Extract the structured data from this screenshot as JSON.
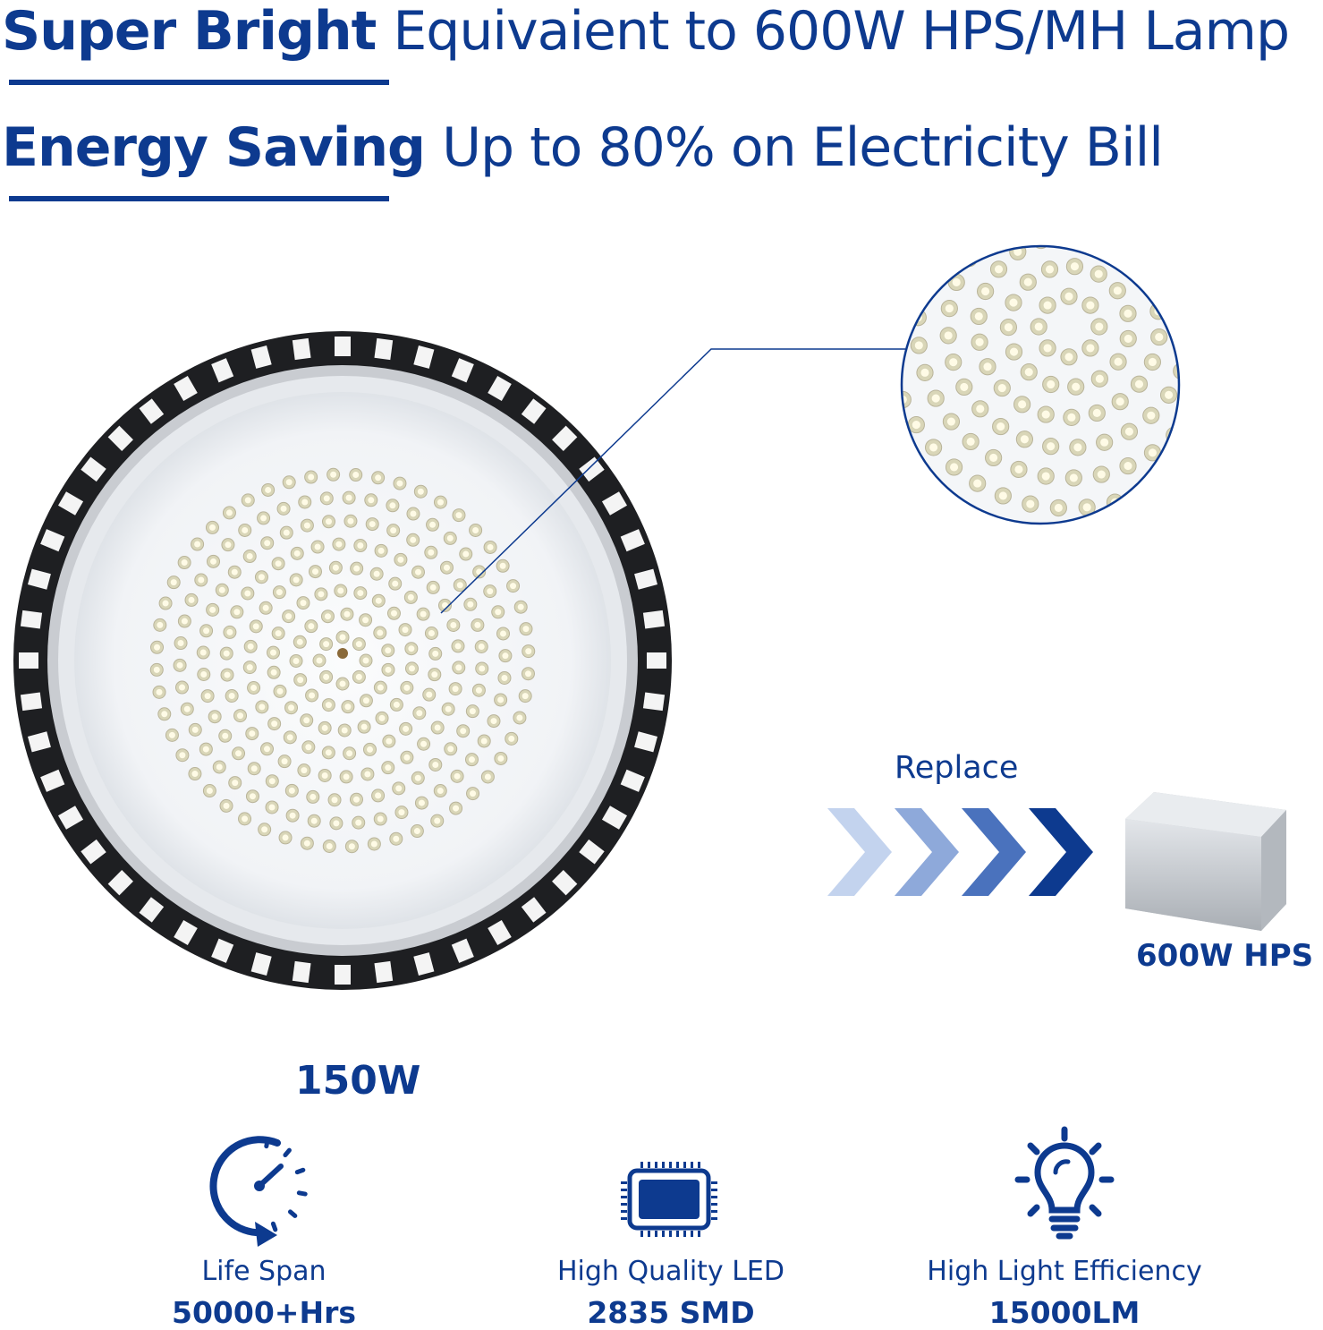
{
  "headline1": {
    "bold": "Super Bright",
    "text": "Equivaient to 600W HPS/MH Lamp"
  },
  "headline2": {
    "bold": "Energy Saving",
    "text": "Up to 80% on Electricity Bill"
  },
  "product": {
    "wattage": "150W"
  },
  "replace": {
    "label": "Replace",
    "target": "600W HPS"
  },
  "features": [
    {
      "icon": "clock-icon",
      "label": "Life Span",
      "value": "50000+Hrs"
    },
    {
      "icon": "chip-icon",
      "label": "High Quality LED",
      "value": "2835 SMD"
    },
    {
      "icon": "lightbulb-icon",
      "label": "High Light Efficiency",
      "value": "15000LM"
    }
  ],
  "colors": {
    "brand": "#0d3a8f",
    "chevron_light": "#b9cbe8",
    "chevron_dark": "#0d3a8f"
  }
}
